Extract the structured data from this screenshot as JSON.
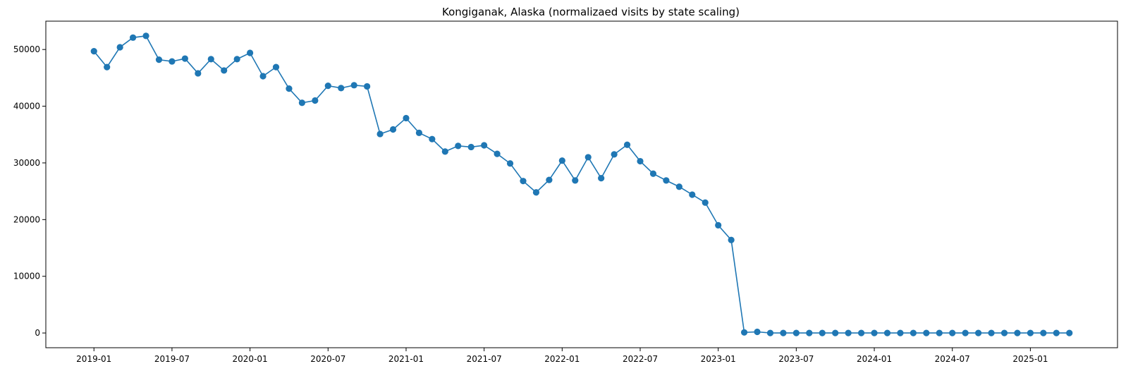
{
  "chart_data": {
    "type": "line",
    "title": "Kongiganak, Alaska (normalizaed visits by state scaling)",
    "xlabel": "",
    "ylabel": "",
    "x": [
      "2019-01",
      "2019-02",
      "2019-03",
      "2019-04",
      "2019-05",
      "2019-06",
      "2019-07",
      "2019-08",
      "2019-09",
      "2019-10",
      "2019-11",
      "2019-12",
      "2020-01",
      "2020-02",
      "2020-03",
      "2020-04",
      "2020-05",
      "2020-06",
      "2020-07",
      "2020-08",
      "2020-09",
      "2020-10",
      "2020-11",
      "2020-12",
      "2021-01",
      "2021-02",
      "2021-03",
      "2021-04",
      "2021-05",
      "2021-06",
      "2021-07",
      "2021-08",
      "2021-09",
      "2021-10",
      "2021-11",
      "2021-12",
      "2022-01",
      "2022-02",
      "2022-03",
      "2022-04",
      "2022-05",
      "2022-06",
      "2022-07",
      "2022-08",
      "2022-09",
      "2022-10",
      "2022-11",
      "2022-12",
      "2023-01",
      "2023-02",
      "2023-03",
      "2023-04",
      "2023-05",
      "2023-06",
      "2023-07",
      "2023-08",
      "2023-09",
      "2023-10",
      "2023-11",
      "2023-12",
      "2024-01",
      "2024-02",
      "2024-03",
      "2024-04",
      "2024-05",
      "2024-06",
      "2024-07",
      "2024-08",
      "2024-09",
      "2024-10",
      "2024-11",
      "2024-12",
      "2025-01",
      "2025-02",
      "2025-03",
      "2025-04"
    ],
    "series": [
      {
        "values": [
          49700,
          46900,
          50400,
          52100,
          52400,
          48200,
          47900,
          48400,
          45800,
          48300,
          46300,
          48300,
          49400,
          45300,
          46900,
          43100,
          40600,
          41000,
          43600,
          43200,
          43700,
          43500,
          35100,
          35900,
          37900,
          35300,
          34200,
          32000,
          33000,
          32800,
          33100,
          31600,
          29900,
          26800,
          24800,
          27000,
          30400,
          26900,
          31000,
          27300,
          31500,
          33200,
          30300,
          28100,
          26900,
          25800,
          24400,
          23000,
          19000,
          16400,
          100,
          200,
          0,
          0,
          0,
          0,
          0,
          0,
          0,
          0,
          0,
          0,
          0,
          0,
          0,
          0,
          0,
          0,
          0,
          0,
          0,
          0,
          0,
          0,
          0,
          0
        ]
      }
    ],
    "xticks": [
      "2019-01",
      "2019-07",
      "2020-01",
      "2020-07",
      "2021-01",
      "2021-07",
      "2022-01",
      "2022-07",
      "2023-01",
      "2023-07",
      "2024-01",
      "2024-07",
      "2025-01"
    ],
    "yticks": [
      0,
      10000,
      20000,
      30000,
      40000,
      50000
    ],
    "ylim": [
      -2600,
      55000
    ],
    "color": "#1f77b4",
    "grid": false
  }
}
